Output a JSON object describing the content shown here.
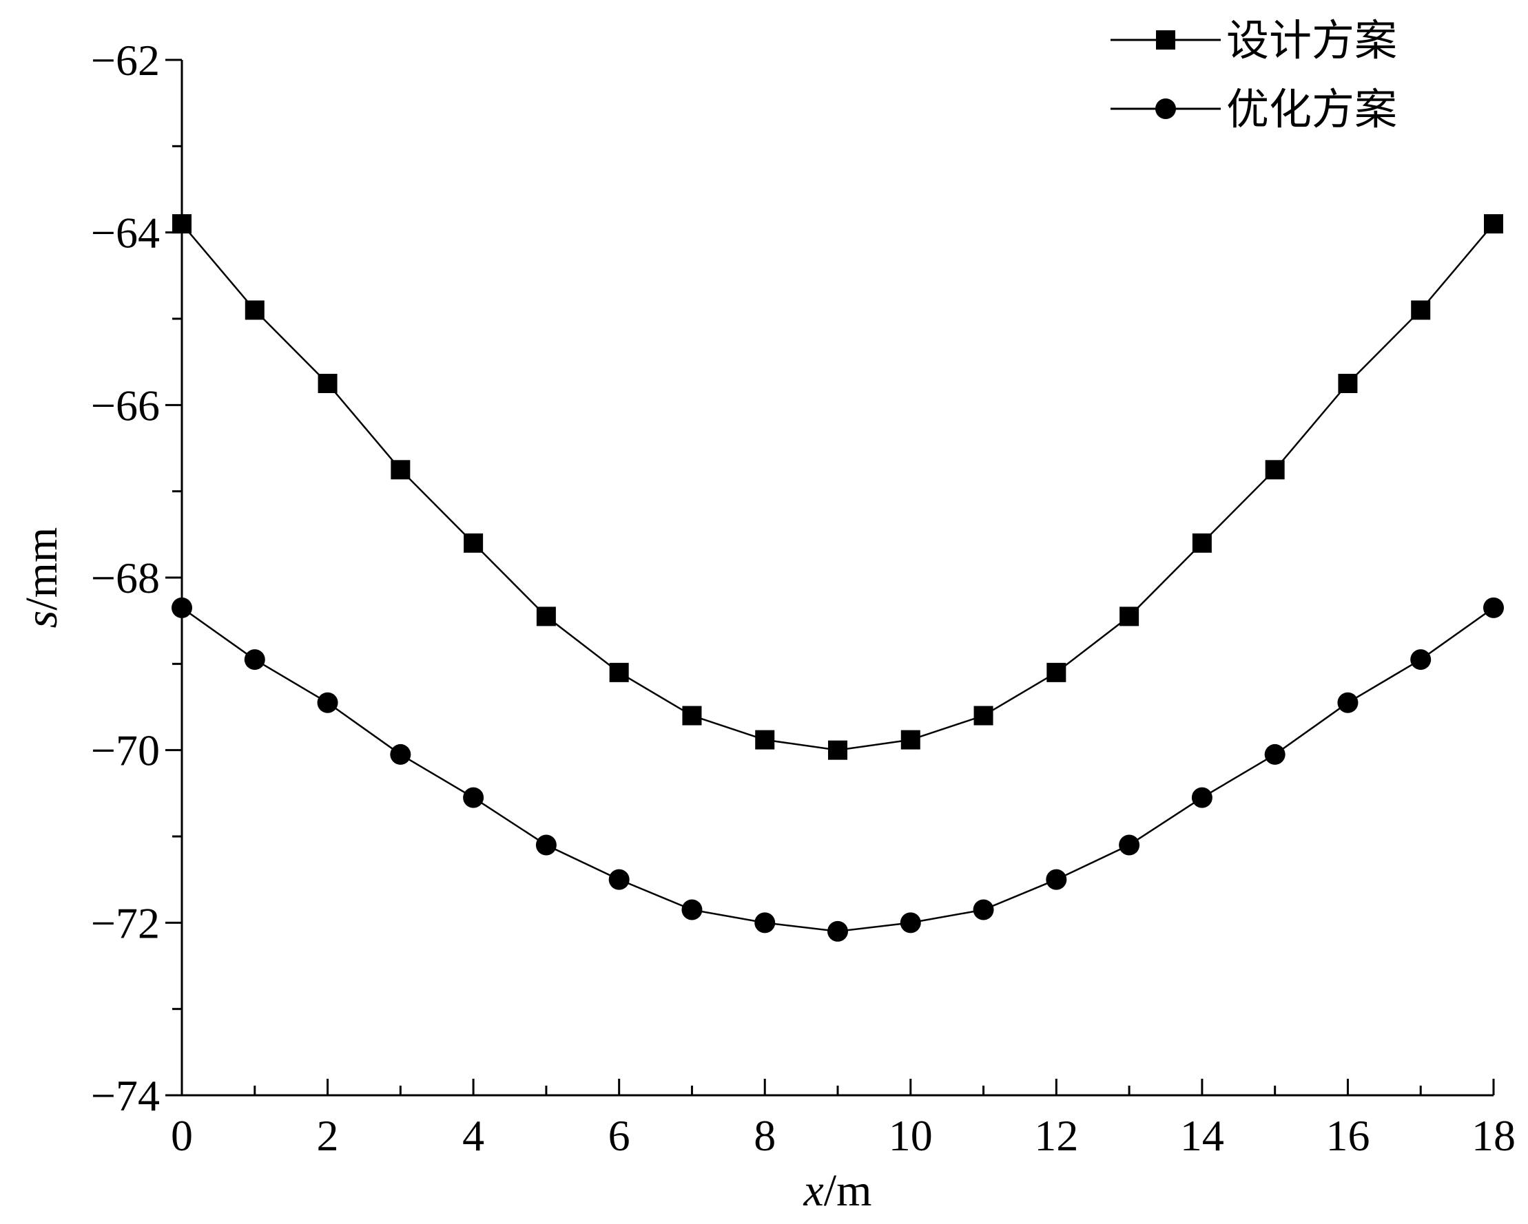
{
  "chart_data": {
    "type": "line",
    "x": [
      0,
      1,
      2,
      3,
      4,
      5,
      6,
      7,
      8,
      9,
      10,
      11,
      12,
      13,
      14,
      15,
      16,
      17,
      18
    ],
    "xlabel_var": "x",
    "xlabel_unit": "/m",
    "ylabel_var": "s",
    "ylabel_unit": "/mm",
    "xlim": [
      0,
      18
    ],
    "ylim": [
      -74,
      -62
    ],
    "xticks": [
      0,
      2,
      4,
      6,
      8,
      10,
      12,
      14,
      16,
      18
    ],
    "xtick_labels": [
      "0",
      "2",
      "4",
      "6",
      "8",
      "10",
      "12",
      "14",
      "16",
      "18"
    ],
    "yticks": [
      -62,
      -64,
      -66,
      -68,
      -70,
      -72,
      -74
    ],
    "ytick_labels": [
      "−62",
      "−64",
      "−66",
      "−68",
      "−70",
      "−72",
      "−74"
    ],
    "grid": false,
    "legend_position": "top-right",
    "series": [
      {
        "name": "设计方案",
        "marker": "square",
        "color": "#000000",
        "values": [
          -63.9,
          -64.9,
          -65.75,
          -66.75,
          -67.6,
          -68.45,
          -69.1,
          -69.6,
          -69.88,
          -70.0,
          -69.88,
          -69.6,
          -69.1,
          -68.45,
          -67.6,
          -66.75,
          -65.75,
          -64.9,
          -63.9
        ]
      },
      {
        "name": "优化方案",
        "marker": "circle",
        "color": "#000000",
        "values": [
          -68.35,
          -68.95,
          -69.45,
          -70.05,
          -70.55,
          -71.1,
          -71.5,
          -71.85,
          -72.0,
          -72.1,
          -72.0,
          -71.85,
          -71.5,
          -71.1,
          -70.55,
          -70.05,
          -69.45,
          -68.95,
          -68.35
        ]
      }
    ]
  }
}
